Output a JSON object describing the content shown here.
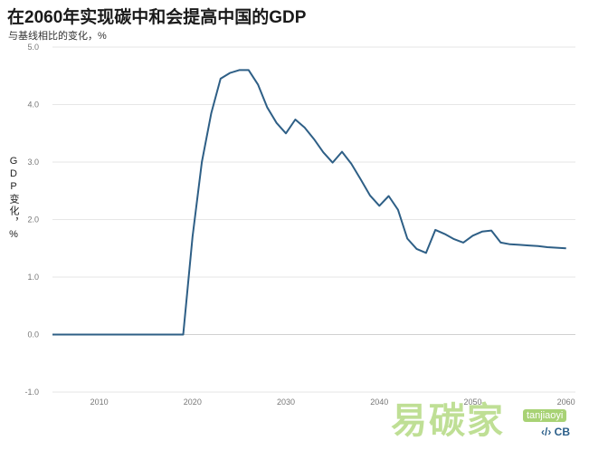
{
  "title": "在2060年实现碳中和会提高中国的GDP",
  "subtitle": "与基线相比的变化，%",
  "ylabel": "GDP变化，%",
  "watermark": {
    "text": "易碳家",
    "sub": "tanjiaoyi",
    "logo": "‹/› CB"
  },
  "colors": {
    "line": "#2e5f86",
    "grid": "#e6e6e6",
    "watermark": "#8cc63f"
  },
  "chart_data": {
    "type": "line",
    "title": "在2060年实现碳中和会提高中国的GDP",
    "ylabel": "GDP变化，%",
    "xlabel": "",
    "ylim": [
      -1.0,
      5.0
    ],
    "xlim": [
      2005,
      2061
    ],
    "y_ticks": [
      "5.0",
      "4.0",
      "3.0",
      "2.0",
      "1.0",
      "0.0",
      "-1.0"
    ],
    "y_tick_values": [
      5,
      4,
      3,
      2,
      1,
      0,
      -1
    ],
    "x_ticks": [
      "2010",
      "2020",
      "2030",
      "2040",
      "2050",
      "2060"
    ],
    "x_tick_values": [
      2010,
      2020,
      2030,
      2040,
      2050,
      2060
    ],
    "grid": "horizontal",
    "series": [
      {
        "x": [
          2005,
          2010,
          2015,
          2019,
          2020,
          2021,
          2022,
          2023,
          2024,
          2025,
          2026,
          2027,
          2028,
          2029,
          2030,
          2031,
          2032,
          2033,
          2034,
          2035,
          2036,
          2037,
          2038,
          2039,
          2040,
          2041,
          2042,
          2043,
          2044,
          2045,
          2046,
          2047,
          2048,
          2049,
          2050,
          2051,
          2052,
          2053,
          2054,
          2055,
          2056,
          2057,
          2058,
          2059,
          2060
        ],
        "values": [
          0.0,
          0.0,
          0.0,
          0.0,
          1.7,
          3.0,
          3.85,
          4.45,
          4.55,
          4.6,
          4.6,
          4.35,
          3.95,
          3.68,
          3.5,
          3.74,
          3.6,
          3.4,
          3.17,
          2.99,
          3.18,
          2.97,
          2.7,
          2.42,
          2.24,
          2.41,
          2.17,
          1.67,
          1.49,
          1.42,
          1.82,
          1.75,
          1.66,
          1.6,
          1.72,
          1.79,
          1.81,
          1.6,
          1.57,
          1.56,
          1.55,
          1.54,
          1.52,
          1.51,
          1.5
        ]
      }
    ]
  }
}
